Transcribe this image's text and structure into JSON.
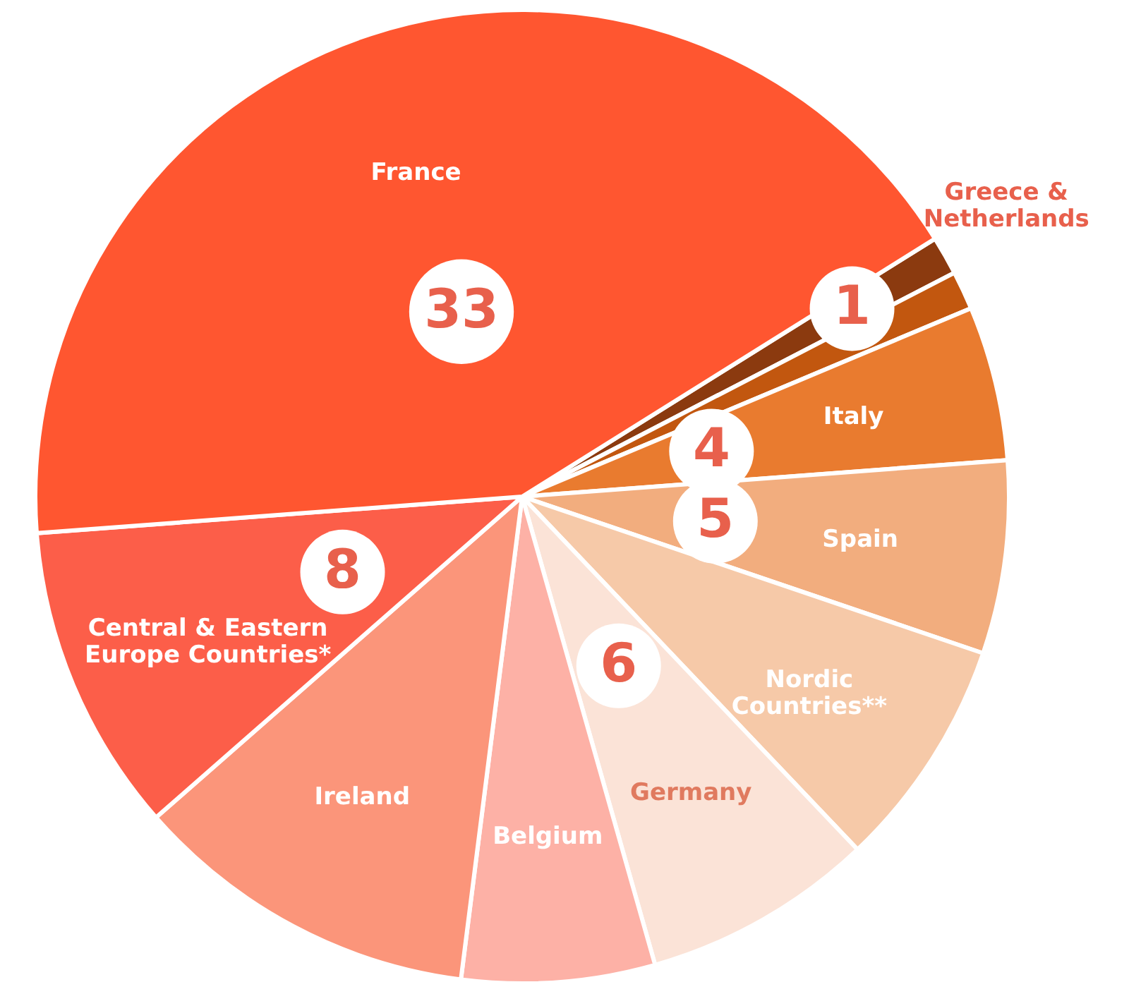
{
  "chart_data": {
    "type": "pie",
    "categories": [
      "Greece & Netherlands",
      null,
      "Italy",
      "Spain",
      "Nordic Countries**",
      "Germany",
      "Belgium",
      "Ireland",
      "Central & Eastern Europe Countries*",
      "France"
    ],
    "values": [
      1,
      1,
      4,
      5,
      6,
      6,
      5,
      9,
      8,
      33
    ],
    "value_labels": [
      "1",
      null,
      "4",
      "5",
      null,
      "6",
      null,
      null,
      "8",
      "33"
    ],
    "colors": [
      "#8b3a0f",
      "#c2570f",
      "#e97b2f",
      "#f2ad7e",
      "#f6c9a8",
      "#fbe3d7",
      "#fdb1a6",
      "#fb957a",
      "#fc5e49",
      "#ff5630"
    ]
  }
}
